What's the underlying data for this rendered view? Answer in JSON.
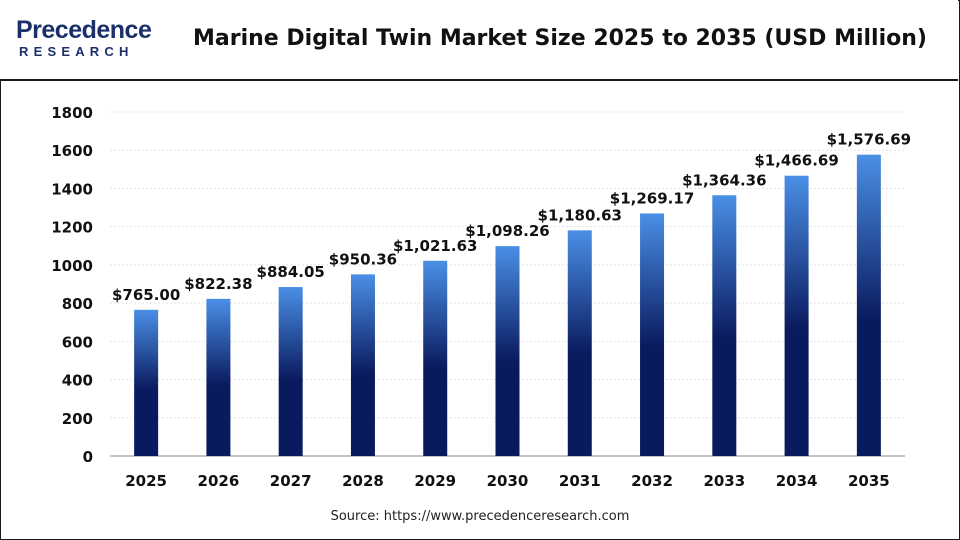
{
  "header": {
    "logo_word": "Precedence",
    "logo_sub": "RESEARCH",
    "title": "Marine Digital Twin Market Size 2025 to 2035 (USD Million)"
  },
  "footer": {
    "source": "Source: https://www.precedenceresearch.com"
  },
  "colors": {
    "brand": "#1b2f6b",
    "bar_top": "#4a8fe6",
    "bar_bottom": "#0a1a5e"
  },
  "chart_data": {
    "type": "bar",
    "title": "Marine Digital Twin Market Size 2025 to 2035 (USD Million)",
    "xlabel": "",
    "ylabel": "",
    "categories": [
      "2025",
      "2026",
      "2027",
      "2028",
      "2029",
      "2030",
      "2031",
      "2032",
      "2033",
      "2034",
      "2035"
    ],
    "values": [
      765.0,
      822.38,
      884.05,
      950.36,
      1021.63,
      1098.26,
      1180.63,
      1269.17,
      1364.36,
      1466.69,
      1576.69
    ],
    "data_labels": [
      "$765.00",
      "$822.38",
      "$884.05",
      "$950.36",
      "$1,021.63",
      "$1,098.26",
      "$1,180.63",
      "$1,269.17",
      "$1,364.36",
      "$1,466.69",
      "$1,576.69"
    ],
    "ylim": [
      0,
      1800
    ],
    "yticks": [
      "0",
      "200",
      "400",
      "600",
      "800",
      "1000",
      "1200",
      "1400",
      "1600",
      "1800"
    ],
    "grid": true,
    "legend": "none"
  }
}
